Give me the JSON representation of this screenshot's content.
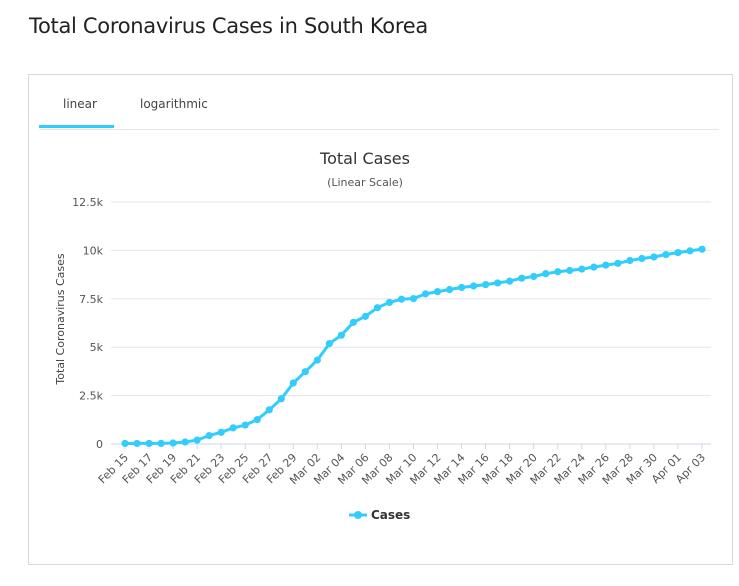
{
  "page": {
    "title": "Total Coronavirus Cases in South Korea"
  },
  "tabs": [
    {
      "label": "linear",
      "active": true
    },
    {
      "label": "logarithmic",
      "active": false
    }
  ],
  "colors": {
    "series": "#33ccff",
    "grid": "#e6e6e6",
    "tab_active": "#33ccff"
  },
  "chart_data": {
    "type": "line",
    "title": "Total Cases",
    "subtitle": "(Linear Scale)",
    "xlabel": "",
    "ylabel": "Total Coronavirus Cases",
    "ylim": [
      0,
      12500
    ],
    "yticks": [
      0,
      2500,
      5000,
      7500,
      10000,
      12500
    ],
    "ytick_labels": [
      "0",
      "2.5k",
      "5k",
      "7.5k",
      "10k",
      "12.5k"
    ],
    "xtick_labels": [
      "Feb 15",
      "Feb 17",
      "Feb 19",
      "Feb 21",
      "Feb 23",
      "Feb 25",
      "Feb 27",
      "Feb 29",
      "Mar 02",
      "Mar 04",
      "Mar 06",
      "Mar 08",
      "Mar 10",
      "Mar 12",
      "Mar 14",
      "Mar 16",
      "Mar 18",
      "Mar 20",
      "Mar 22",
      "Mar 24",
      "Mar 26",
      "Mar 28",
      "Mar 30",
      "Apr 01",
      "Apr 03"
    ],
    "grid": true,
    "legend_position": "bottom-center",
    "series": [
      {
        "name": "Cases",
        "values": [
          28,
          29,
          30,
          31,
          51,
          104,
          204,
          433,
          602,
          833,
          977,
          1261,
          1766,
          2337,
          3150,
          3736,
          4335,
          5186,
          5621,
          6284,
          6593,
          7041,
          7313,
          7478,
          7513,
          7755,
          7869,
          7979,
          8086,
          8162,
          8236,
          8320,
          8413,
          8565,
          8652,
          8799,
          8897,
          8961,
          9037,
          9137,
          9241,
          9332,
          9478,
          9583,
          9661,
          9786,
          9887,
          9976,
          10062
        ]
      }
    ]
  }
}
